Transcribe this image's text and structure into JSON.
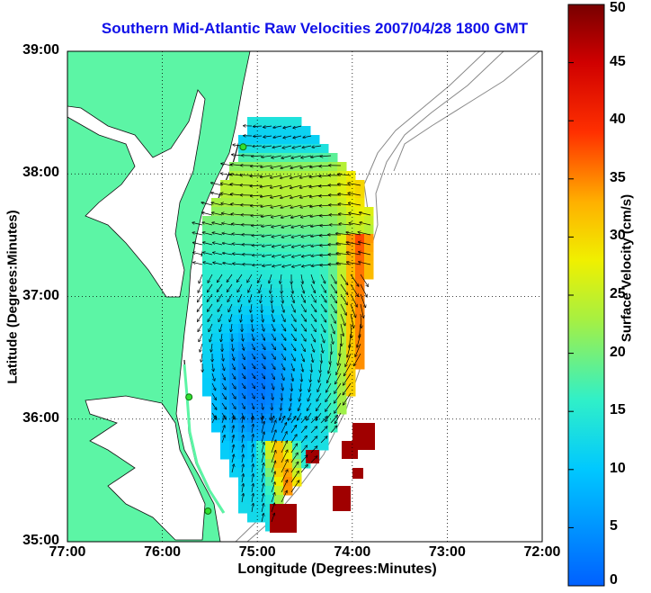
{
  "title": "Southern Mid-Atlantic Raw Velocities 2007/04/28 1800 GMT",
  "xlabel": "Longitude (Degrees:Minutes)",
  "ylabel": "Latitude (Degrees:Minutes)",
  "colorbar": {
    "label": "Surface Velocity (cm/s)",
    "min": 0,
    "max": 50,
    "ticks": [
      "0",
      "5",
      "10",
      "15",
      "20",
      "25",
      "30",
      "35",
      "40",
      "45",
      "50"
    ]
  },
  "map": {
    "lon_ticks": [
      "77:00",
      "76:00",
      "75:00",
      "74:00",
      "73:00",
      "72:00"
    ],
    "lat_ticks": [
      "39:00",
      "38:00",
      "37:00",
      "36:00",
      "35:00"
    ],
    "lon_range_west": [
      77,
      72
    ],
    "lat_range": [
      35,
      39
    ],
    "colors": {
      "land": "#5cf5a5",
      "water": "#ffffff",
      "coast": "#111111",
      "bathymetry": "#888888",
      "grid": "#000000"
    },
    "stations": [
      {
        "lon": 75.15,
        "lat": 38.22
      },
      {
        "lon": 75.72,
        "lat": 36.18
      },
      {
        "lon": 75.52,
        "lat": 35.25
      }
    ]
  }
}
